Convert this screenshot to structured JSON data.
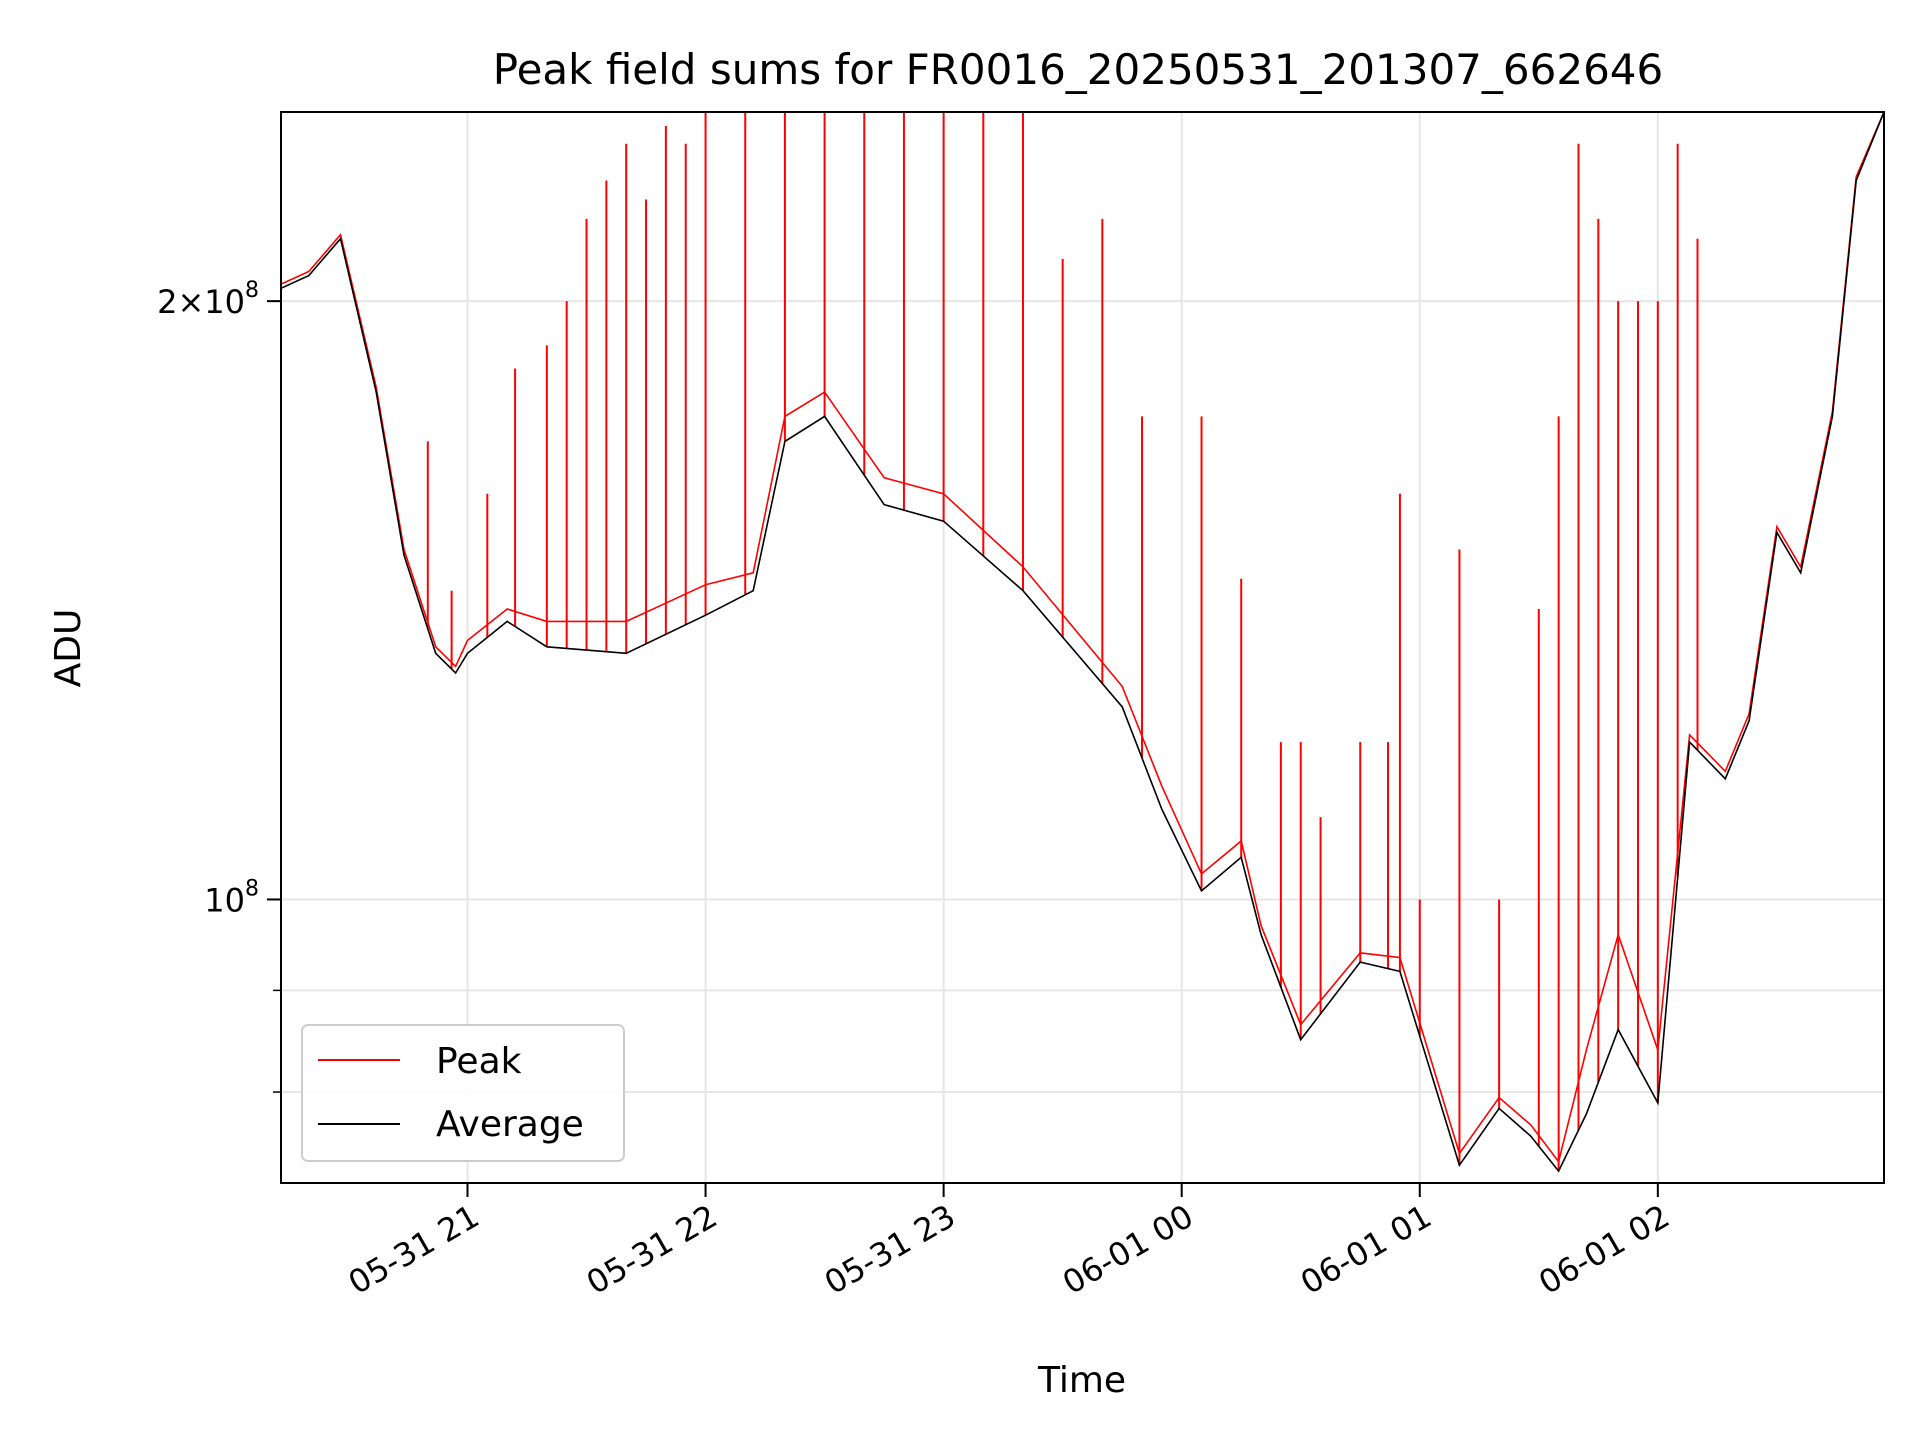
{
  "chart_data": {
    "type": "line",
    "title": "Peak field sums for FR0016_20250531_201307_662646",
    "xlabel": "Time",
    "ylabel": "ADU",
    "yscale": "log",
    "ylim": [
      72000000,
      249000000
    ],
    "xlim": [
      "2025-05-31 20:13",
      "2025-06-01 02:57"
    ],
    "grid": true,
    "legend_position": "lower-left",
    "x_ticks": [
      "05-31 21",
      "05-31 22",
      "05-31 23",
      "06-01 00",
      "06-01 01",
      "06-01 02"
    ],
    "y_ticks": [
      {
        "value": 100000000,
        "mantissa": "",
        "base": "10",
        "exp": "8"
      },
      {
        "value": 200000000,
        "mantissa": "2×",
        "base": "10",
        "exp": "8"
      }
    ],
    "x": [
      "2025-05-31 20:13",
      "2025-05-31 20:20",
      "2025-05-31 20:28",
      "2025-05-31 20:37",
      "2025-05-31 20:44",
      "2025-05-31 20:52",
      "2025-05-31 20:57",
      "2025-05-31 21:00",
      "2025-05-31 21:10",
      "2025-05-31 21:20",
      "2025-05-31 21:40",
      "2025-05-31 22:00",
      "2025-05-31 22:12",
      "2025-05-31 22:20",
      "2025-05-31 22:30",
      "2025-05-31 22:45",
      "2025-05-31 23:00",
      "2025-05-31 23:20",
      "2025-05-31 23:45",
      "2025-05-31 23:55",
      "2025-06-01 00:05",
      "2025-06-01 00:15",
      "2025-06-01 00:20",
      "2025-06-01 00:30",
      "2025-06-01 00:45",
      "2025-06-01 00:55",
      "2025-06-01 01:10",
      "2025-06-01 01:20",
      "2025-06-01 01:28",
      "2025-06-01 01:35",
      "2025-06-01 01:42",
      "2025-06-01 01:50",
      "2025-06-01 02:00",
      "2025-06-01 02:08",
      "2025-06-01 02:17",
      "2025-06-01 02:23",
      "2025-06-01 02:30",
      "2025-06-01 02:36",
      "2025-06-01 02:44",
      "2025-06-01 02:50",
      "2025-06-01 02:57"
    ],
    "series": [
      {
        "name": "Average",
        "color": "#000000",
        "values": [
          203000000,
          206000000,
          215000000,
          180000000,
          149000000,
          133000000,
          130000000,
          133000000,
          138000000,
          134000000,
          133000000,
          139000000,
          143000000,
          170000000,
          175000000,
          158000000,
          155000000,
          143000000,
          125000000,
          111000000,
          101000000,
          105000000,
          96000000,
          85000000,
          93000000,
          92000000,
          73500000,
          78500000,
          76000000,
          73000000,
          78000000,
          86000000,
          79000000,
          120000000,
          115000000,
          123000000,
          153000000,
          146000000,
          175000000,
          230000000,
          249000000
        ]
      },
      {
        "name": "Peak",
        "color": "#ff0000",
        "values": [
          204000000,
          207000000,
          216000000,
          181000000,
          150000000,
          134000000,
          131000000,
          135000000,
          140000000,
          138000000,
          138000000,
          144000000,
          146000000,
          175000000,
          180000000,
          163000000,
          160000000,
          147000000,
          128000000,
          114000000,
          103000000,
          107000000,
          97000000,
          86500000,
          94000000,
          93500000,
          74500000,
          79500000,
          77000000,
          73800000,
          84000000,
          96000000,
          84000000,
          121000000,
          116000000,
          124000000,
          154000000,
          147000000,
          176000000,
          231000000,
          249000000
        ],
        "spikes": [
          [
            "2025-05-31 20:50",
            170000000
          ],
          [
            "2025-05-31 20:56",
            143000000
          ],
          [
            "2025-05-31 21:05",
            160000000
          ],
          [
            "2025-05-31 21:12",
            185000000
          ],
          [
            "2025-05-31 21:20",
            190000000
          ],
          [
            "2025-05-31 21:25",
            200000000
          ],
          [
            "2025-05-31 21:30",
            220000000
          ],
          [
            "2025-05-31 21:35",
            230000000
          ],
          [
            "2025-05-31 21:40",
            240000000
          ],
          [
            "2025-05-31 21:45",
            225000000
          ],
          [
            "2025-05-31 21:50",
            245000000
          ],
          [
            "2025-05-31 21:55",
            240000000
          ],
          [
            "2025-05-31 22:00",
            249000000
          ],
          [
            "2025-05-31 22:10",
            249000000
          ],
          [
            "2025-05-31 22:20",
            249000000
          ],
          [
            "2025-05-31 22:30",
            249000000
          ],
          [
            "2025-05-31 22:40",
            249000000
          ],
          [
            "2025-05-31 22:50",
            249000000
          ],
          [
            "2025-05-31 23:00",
            249000000
          ],
          [
            "2025-05-31 23:10",
            249000000
          ],
          [
            "2025-05-31 23:20",
            249000000
          ],
          [
            "2025-05-31 23:30",
            210000000
          ],
          [
            "2025-05-31 23:40",
            220000000
          ],
          [
            "2025-05-31 23:50",
            175000000
          ],
          [
            "2025-06-01 00:05",
            175000000
          ],
          [
            "2025-06-01 00:15",
            145000000
          ],
          [
            "2025-06-01 00:25",
            120000000
          ],
          [
            "2025-06-01 00:30",
            120000000
          ],
          [
            "2025-06-01 00:35",
            110000000
          ],
          [
            "2025-06-01 00:45",
            120000000
          ],
          [
            "2025-06-01 00:52",
            120000000
          ],
          [
            "2025-06-01 00:55",
            160000000
          ],
          [
            "2025-06-01 01:00",
            100000000
          ],
          [
            "2025-06-01 01:10",
            150000000
          ],
          [
            "2025-06-01 01:20",
            100000000
          ],
          [
            "2025-06-01 01:30",
            140000000
          ],
          [
            "2025-06-01 01:35",
            175000000
          ],
          [
            "2025-06-01 01:40",
            240000000
          ],
          [
            "2025-06-01 01:45",
            220000000
          ],
          [
            "2025-06-01 01:50",
            200000000
          ],
          [
            "2025-06-01 01:55",
            200000000
          ],
          [
            "2025-06-01 02:00",
            200000000
          ],
          [
            "2025-06-01 02:05",
            240000000
          ],
          [
            "2025-06-01 02:10",
            215000000
          ]
        ]
      }
    ]
  }
}
